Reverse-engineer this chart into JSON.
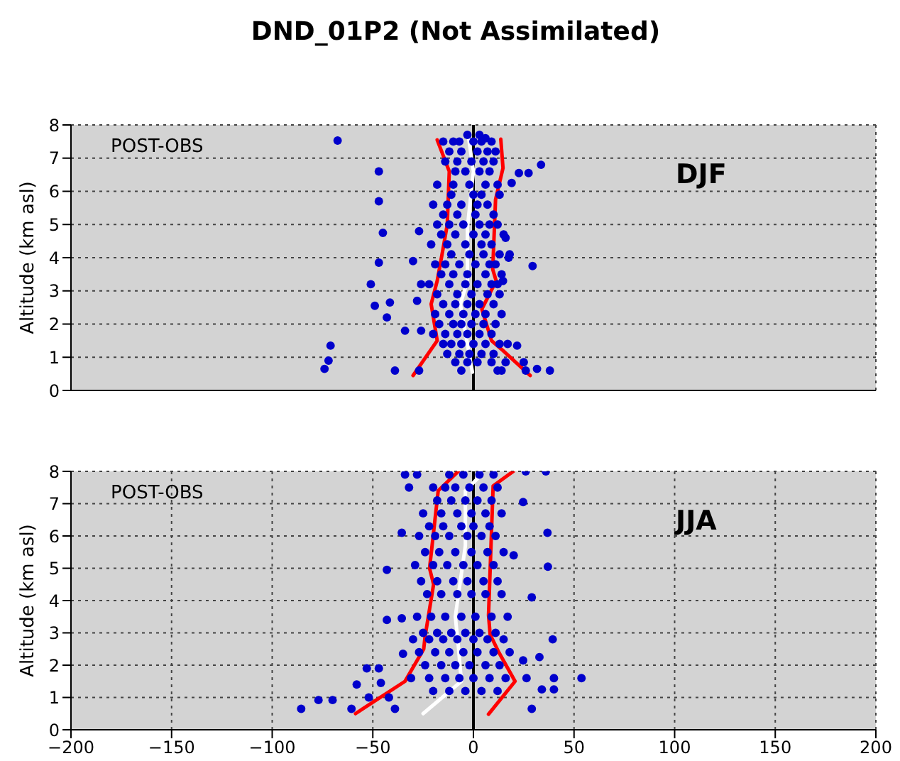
{
  "chart_data": [
    {
      "type": "scatter",
      "title": "DND_01P2 (Not Assimilated)",
      "ylabel": "Altitude (km asl)",
      "annotations": [
        "POST-OBS",
        "DJF"
      ],
      "xlim": [
        -200,
        200
      ],
      "xticks": [
        -200,
        -150,
        -100,
        -50,
        0,
        50,
        100,
        150,
        200
      ],
      "ylim": [
        0,
        8
      ],
      "yticks": [
        0,
        1,
        2,
        3,
        4,
        5,
        6,
        7,
        8
      ],
      "tick_labels": "y",
      "grid": true,
      "ref_lines": [
        {
          "axis": "x",
          "value": 0,
          "color": "#000000"
        }
      ],
      "series": [
        {
          "marker": "circle",
          "color": "#0000cc",
          "x": [
            -3,
            3,
            6,
            -15,
            -10,
            -7,
            0,
            4,
            9,
            -12,
            -6,
            2,
            7,
            11,
            -14,
            -8,
            -1,
            5,
            10,
            -9,
            -4,
            3,
            8,
            -18,
            -10,
            -2,
            6,
            12,
            -11,
            0,
            4,
            13,
            -20,
            -13,
            -6,
            2,
            7,
            -15,
            -8,
            1,
            10,
            -18,
            -12,
            -5,
            3,
            8,
            12,
            -16,
            -9,
            0,
            6,
            15,
            -21,
            -13,
            -4,
            4,
            9,
            -11,
            -2,
            5,
            13,
            18,
            -19,
            -14,
            -7,
            1,
            8,
            11,
            -16,
            -10,
            -3,
            6,
            14,
            -22,
            -12,
            -4,
            2,
            9,
            12,
            -18,
            -8,
            -1,
            7,
            13,
            -15,
            -9,
            -3,
            3,
            10,
            -19,
            -12,
            -5,
            1,
            6,
            14,
            -17,
            -10,
            -6,
            -1,
            5,
            11,
            -20,
            -14,
            -8,
            -3,
            3,
            9,
            -15,
            -11,
            -6,
            0,
            6,
            13,
            17,
            -13,
            -7,
            -2,
            4,
            10,
            -9,
            -3,
            2,
            9,
            16,
            25,
            -27,
            -6,
            12,
            14,
            26,
            -67.5,
            -47,
            -47,
            -45,
            -47,
            -51,
            -49,
            -41.5,
            -43,
            -34,
            -71,
            -72,
            -74,
            -39,
            -30,
            -27,
            -26,
            -28,
            -26,
            33.6,
            22.6,
            27.4,
            29.4,
            38,
            31.6,
            21.7,
            19,
            16,
            17.5,
            14.7
          ],
          "values": [
            7.7,
            7.7,
            7.6,
            7.5,
            7.5,
            7.5,
            7.5,
            7.5,
            7.5,
            7.2,
            7.2,
            7.2,
            7.2,
            7.2,
            6.9,
            6.9,
            6.9,
            6.9,
            6.9,
            6.6,
            6.6,
            6.6,
            6.6,
            6.2,
            6.2,
            6.2,
            6.2,
            6.2,
            5.9,
            5.9,
            5.9,
            5.9,
            5.6,
            5.6,
            5.6,
            5.6,
            5.6,
            5.3,
            5.3,
            5.3,
            5.3,
            5.0,
            5.0,
            5.0,
            5.0,
            5.0,
            5.0,
            4.7,
            4.7,
            4.7,
            4.7,
            4.7,
            4.4,
            4.4,
            4.4,
            4.4,
            4.4,
            4.1,
            4.1,
            4.1,
            4.1,
            4.1,
            3.8,
            3.8,
            3.8,
            3.8,
            3.8,
            3.8,
            3.5,
            3.5,
            3.5,
            3.5,
            3.5,
            3.2,
            3.2,
            3.2,
            3.2,
            3.2,
            3.2,
            2.9,
            2.9,
            2.9,
            2.9,
            2.9,
            2.6,
            2.6,
            2.6,
            2.6,
            2.6,
            2.3,
            2.3,
            2.3,
            2.3,
            2.3,
            2.3,
            2.0,
            2.0,
            2.0,
            2.0,
            2.0,
            2.0,
            1.7,
            1.7,
            1.7,
            1.7,
            1.7,
            1.7,
            1.4,
            1.4,
            1.4,
            1.4,
            1.4,
            1.4,
            1.4,
            1.1,
            1.1,
            1.1,
            1.1,
            1.1,
            0.85,
            0.85,
            0.85,
            0.85,
            0.85,
            0.85,
            0.6,
            0.6,
            0.6,
            0.6,
            0.6,
            7.53,
            6.6,
            5.7,
            4.75,
            3.85,
            3.2,
            2.55,
            2.65,
            2.2,
            1.8,
            1.35,
            0.9,
            0.65,
            0.6,
            3.9,
            4.8,
            3.2,
            2.7,
            1.8,
            6.8,
            6.55,
            6.55,
            3.75,
            0.6,
            0.65,
            1.35,
            6.25,
            4.6,
            4.0,
            3.3
          ]
        },
        {
          "type": "line",
          "color": "#ff0000",
          "x": [
            -18,
            -12,
            -13,
            -15,
            -18,
            -21,
            -18,
            -30
          ],
          "values": [
            7.55,
            6.6,
            5,
            4.3,
            3.3,
            2.6,
            1.5,
            0.45
          ]
        },
        {
          "type": "line",
          "color": "#ff0000",
          "x": [
            13.6,
            14.7,
            11,
            9.6,
            11.3,
            4.2,
            9,
            14.7,
            28.2
          ],
          "values": [
            7.57,
            6.7,
            5.75,
            3.65,
            3.3,
            2.45,
            1.5,
            1.2,
            0.45
          ]
        },
        {
          "type": "line",
          "color": "#ffffff",
          "x": [
            -2.3,
            0,
            -3,
            -3,
            -6.5,
            -3,
            -0.5
          ],
          "values": [
            7.57,
            6.6,
            4.9,
            3.3,
            2.6,
            1.4,
            0.55
          ]
        }
      ]
    },
    {
      "type": "scatter",
      "ylabel": "Altitude (km asl)",
      "annotations": [
        "POST-OBS",
        "JJA"
      ],
      "xlim": [
        -200,
        200
      ],
      "xticks": [
        -200,
        -150,
        -100,
        -50,
        0,
        50,
        100,
        150,
        200
      ],
      "ylim": [
        0,
        8
      ],
      "yticks": [
        0,
        1,
        2,
        3,
        4,
        5,
        6,
        7,
        8
      ],
      "grid": true,
      "ref_lines": [
        {
          "axis": "x",
          "value": 0,
          "color": "#000000"
        }
      ],
      "series": [
        {
          "marker": "circle",
          "color": "#0000cc",
          "x": [
            -12,
            -5,
            3,
            10,
            -20,
            -14,
            -9,
            -2,
            5,
            12,
            -18,
            -11,
            -4,
            2,
            9,
            -25,
            -16,
            -8,
            -1,
            6,
            14,
            -22,
            -15,
            -6,
            0,
            8,
            -27,
            -19,
            -12,
            -3,
            4,
            11,
            -24,
            -17,
            -9,
            -1,
            7,
            15,
            -29,
            -20,
            -13,
            -5,
            2,
            10,
            -26,
            -18,
            -10,
            -3,
            5,
            12,
            -23,
            -16,
            -8,
            -1,
            6,
            14,
            -28,
            -21,
            -14,
            -6,
            1,
            9,
            17,
            -25,
            -18,
            -11,
            -4,
            3,
            11,
            -30,
            -22,
            -15,
            -8,
            0,
            7,
            15,
            -27,
            -19,
            -12,
            -5,
            2,
            10,
            18,
            -24,
            -16,
            -9,
            -2,
            6,
            13,
            -31,
            -22,
            -14,
            -7,
            0,
            8,
            16,
            -20,
            -12,
            -4,
            4,
            12,
            -85.6,
            -77,
            -70,
            -60.6,
            -58,
            -53,
            -47,
            -43,
            -43,
            -35.6,
            -32,
            -34,
            -28,
            -35.6,
            -35,
            -46,
            -52,
            -42,
            -39,
            36.8,
            37,
            39.4,
            32.8,
            53.7,
            40,
            40,
            34,
            29,
            29,
            24.7,
            26,
            36,
            24.7,
            26.4,
            20
          ],
          "values": [
            7.9,
            7.9,
            7.9,
            7.9,
            7.5,
            7.5,
            7.5,
            7.5,
            7.5,
            7.5,
            7.1,
            7.1,
            7.1,
            7.1,
            7.1,
            6.7,
            6.7,
            6.7,
            6.7,
            6.7,
            6.7,
            6.3,
            6.3,
            6.3,
            6.3,
            6.3,
            6.0,
            6.0,
            6.0,
            6.0,
            6.0,
            6.0,
            5.5,
            5.5,
            5.5,
            5.5,
            5.5,
            5.5,
            5.1,
            5.1,
            5.1,
            5.1,
            5.1,
            5.1,
            4.6,
            4.6,
            4.6,
            4.6,
            4.6,
            4.6,
            4.2,
            4.2,
            4.2,
            4.2,
            4.2,
            4.2,
            3.5,
            3.5,
            3.5,
            3.5,
            3.5,
            3.5,
            3.5,
            3.0,
            3.0,
            3.0,
            3.0,
            3.0,
            3.0,
            2.8,
            2.8,
            2.8,
            2.8,
            2.8,
            2.8,
            2.8,
            2.4,
            2.4,
            2.4,
            2.4,
            2.4,
            2.4,
            2.4,
            2.0,
            2.0,
            2.0,
            2.0,
            2.0,
            2.0,
            1.6,
            1.6,
            1.6,
            1.6,
            1.6,
            1.6,
            1.6,
            1.2,
            1.2,
            1.2,
            1.2,
            1.2,
            0.65,
            0.92,
            0.92,
            0.65,
            1.4,
            1.9,
            1.9,
            3.4,
            4.95,
            6.1,
            7.5,
            7.9,
            7.9,
            3.45,
            2.35,
            1.45,
            1.0,
            1.0,
            0.65,
            6.1,
            5.05,
            2.8,
            2.25,
            1.6,
            1.6,
            1.25,
            1.25,
            0.65,
            4.1,
            7.05,
            8,
            8,
            2.15,
            1.6,
            5.4
          ]
        },
        {
          "type": "line",
          "color": "#ff0000",
          "x": [
            -7.5,
            -17.5,
            -21.8,
            -19.8,
            -24,
            -24.7,
            -34,
            -58.6
          ],
          "values": [
            8,
            7.4,
            5,
            4.5,
            2.9,
            2.5,
            1.5,
            0.5
          ]
        },
        {
          "type": "line",
          "color": "#ff0000",
          "x": [
            19.8,
            9.8,
            7.5,
            8.3,
            12.6,
            20.7,
            7.5
          ],
          "values": [
            8,
            7.55,
            3.55,
            2.95,
            2.4,
            1.5,
            0.48
          ]
        },
        {
          "type": "line",
          "color": "#ffffff",
          "x": [
            4,
            -4,
            -4,
            -9,
            -7.5,
            -6,
            -25
          ],
          "values": [
            7.9,
            7.4,
            5.7,
            3.5,
            2.6,
            1.5,
            0.5
          ]
        }
      ]
    }
  ]
}
